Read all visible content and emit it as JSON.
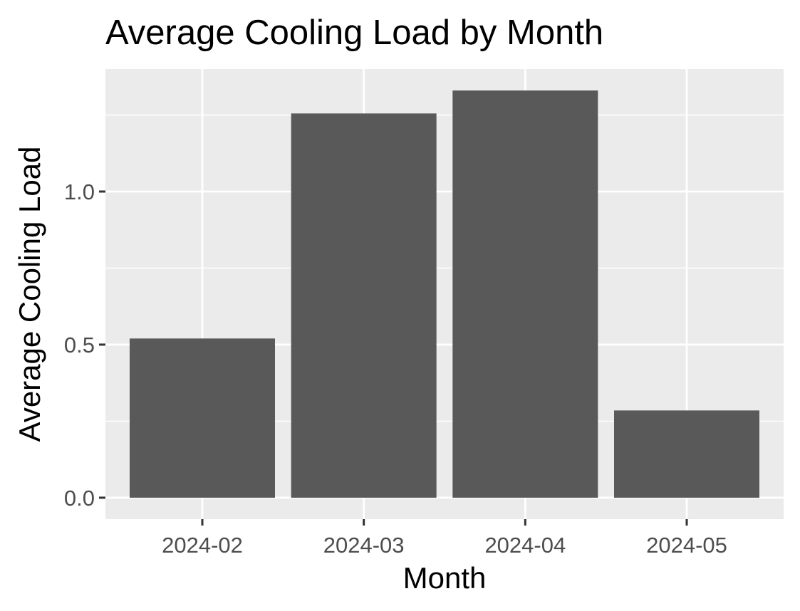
{
  "chart_data": {
    "type": "bar",
    "title": "Average Cooling Load by Month",
    "xlabel": "Month",
    "ylabel": "Average Cooling Load",
    "categories": [
      "2024-02",
      "2024-03",
      "2024-04",
      "2024-05"
    ],
    "values": [
      0.52,
      1.255,
      1.33,
      0.285
    ],
    "ylim": [
      -0.07,
      1.4
    ],
    "yticks": [
      0.0,
      0.5,
      1.0
    ],
    "ytick_labels": [
      "0.0",
      "0.5",
      "1.0"
    ],
    "grid": true,
    "legend": "none",
    "colors": {
      "bar": "#595959",
      "panel": "#ebebeb",
      "grid": "#ffffff",
      "tick_text": "#4d4d4d",
      "tick_mark": "#333333"
    }
  }
}
